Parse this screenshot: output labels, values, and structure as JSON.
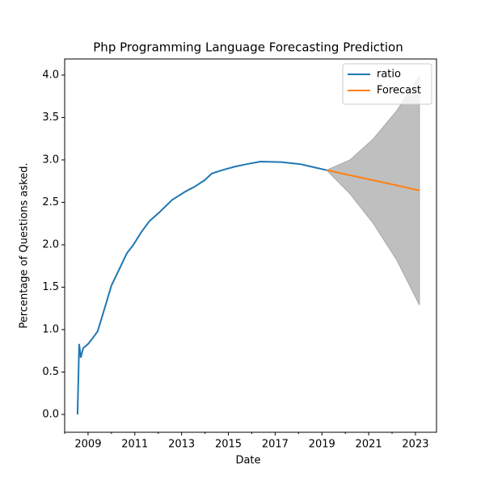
{
  "chart_data": {
    "type": "line",
    "title": "Php Programming Language Forecasting Prediction",
    "xlabel": "Date",
    "ylabel": "Percentage of Questions asked.",
    "xlim": [
      2008.0,
      2023.9
    ],
    "ylim": [
      -0.21,
      4.19
    ],
    "xticks": [
      2009,
      2011,
      2013,
      2015,
      2017,
      2019,
      2021,
      2023
    ],
    "xminorticks": [
      2008,
      2010,
      2012,
      2014,
      2016,
      2018,
      2020,
      2022
    ],
    "yticks": [
      {
        "value": 0,
        "label": "0.0"
      },
      0.5,
      {
        "value": 1,
        "label": "1.0"
      },
      1.5,
      {
        "value": 2,
        "label": "2.0"
      },
      2.5,
      {
        "value": 3,
        "label": "3.0"
      },
      3.5,
      {
        "value": 4,
        "label": "4.0"
      }
    ],
    "legend": "upper right",
    "series": [
      {
        "name": "ratio",
        "color": "#1f77b4",
        "x": [
          2008.55,
          2008.62,
          2008.69,
          2008.79,
          2009.0,
          2009.2,
          2009.41,
          2009.73,
          2010.0,
          2010.35,
          2010.66,
          2010.94,
          2011.28,
          2011.63,
          2012.04,
          2012.6,
          2013.18,
          2013.53,
          2013.98,
          2014.29,
          2014.74,
          2015.26,
          2015.78,
          2016.37,
          2017.26,
          2018.09,
          2018.71,
          2019.2
        ],
        "values": [
          0.0,
          0.83,
          0.67,
          0.78,
          0.83,
          0.9,
          0.98,
          1.27,
          1.52,
          1.72,
          1.9,
          2.0,
          2.15,
          2.28,
          2.38,
          2.53,
          2.63,
          2.68,
          2.76,
          2.84,
          2.88,
          2.92,
          2.95,
          2.98,
          2.975,
          2.95,
          2.91,
          2.88
        ]
      },
      {
        "name": "Forecast",
        "color": "#ff7f0e",
        "x": [
          2019.2,
          2020.2,
          2021.2,
          2022.2,
          2023.17
        ],
        "values": [
          2.88,
          2.82,
          2.76,
          2.7,
          2.64
        ]
      }
    ],
    "band": {
      "color": "#bfbfbf",
      "x": [
        2019.2,
        2020.2,
        2021.2,
        2022.2,
        2023.17
      ],
      "lower": [
        2.88,
        2.6,
        2.25,
        1.82,
        1.29
      ],
      "upper": [
        2.88,
        3.0,
        3.25,
        3.58,
        3.99
      ]
    }
  }
}
